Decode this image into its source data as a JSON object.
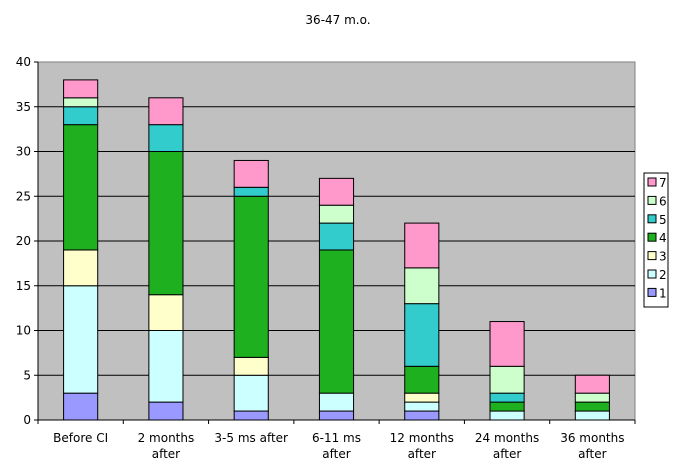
{
  "chart_data": {
    "type": "bar",
    "stacked": true,
    "title": "36-47 m.o.",
    "xlabel": "",
    "ylabel": "",
    "ylim": [
      0,
      40
    ],
    "yticks": [
      0,
      5,
      10,
      15,
      20,
      25,
      30,
      35,
      40
    ],
    "grid": true,
    "legend_position": "right",
    "plot_background": "#c0c0c0",
    "categories": [
      [
        "Before CI"
      ],
      [
        "2 months",
        "after"
      ],
      [
        "3-5 ms after"
      ],
      [
        "6-11 ms",
        "after"
      ],
      [
        "12 months",
        "after"
      ],
      [
        "24 months",
        "after"
      ],
      [
        "36 months",
        "after"
      ]
    ],
    "series": [
      {
        "name": "1",
        "color": "#9999ff",
        "values": [
          3,
          2,
          1,
          1,
          1,
          0,
          0
        ]
      },
      {
        "name": "2",
        "color": "#ccffff",
        "values": [
          12,
          8,
          4,
          2,
          1,
          1,
          1
        ]
      },
      {
        "name": "3",
        "color": "#ffffcc",
        "values": [
          4,
          4,
          2,
          0,
          1,
          0,
          0
        ]
      },
      {
        "name": "4",
        "color": "#1fb01f",
        "values": [
          14,
          16,
          18,
          16,
          3,
          1,
          1
        ]
      },
      {
        "name": "5",
        "color": "#33cccc",
        "values": [
          2,
          3,
          1,
          3,
          7,
          1,
          0
        ]
      },
      {
        "name": "6",
        "color": "#ccffcc",
        "values": [
          1,
          0,
          0,
          2,
          4,
          3,
          1
        ]
      },
      {
        "name": "7",
        "color": "#ff99cc",
        "values": [
          2,
          3,
          3,
          3,
          5,
          5,
          2
        ]
      }
    ]
  }
}
